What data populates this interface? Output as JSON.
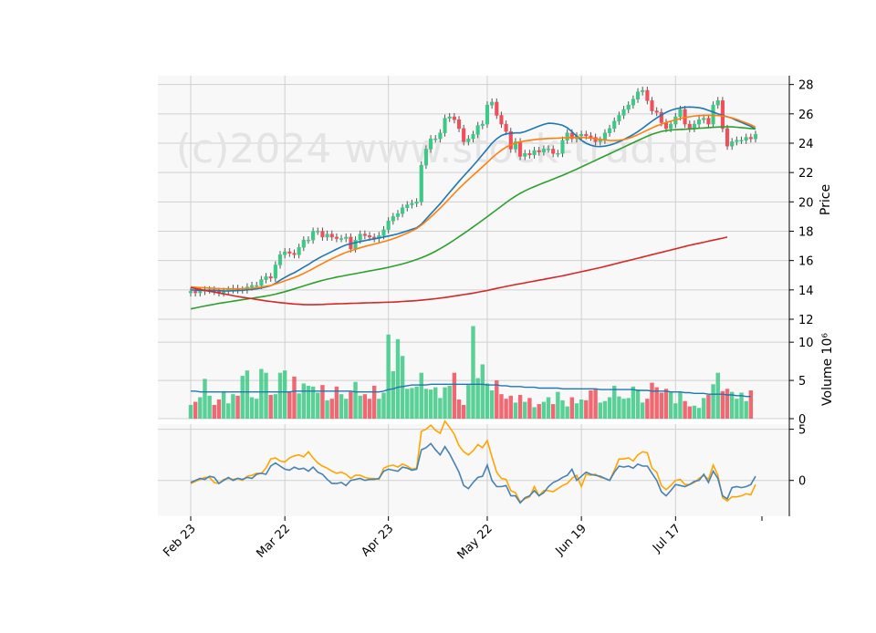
{
  "watermark": "(c)2024 www.stock-trad.de",
  "colors": {
    "panel_bg": "#f8f8f8",
    "grid": "#d0d0d0",
    "up": "#3dc985",
    "down": "#ef4f5a",
    "ma_blue": "#1f77b4",
    "ma_orange": "#ff7f0e",
    "ma_green": "#2ca02c",
    "ma_red": "#d62728",
    "vol_avg": "#1f77b4",
    "osc_a": "#ffa500",
    "osc_b": "#4682b4"
  },
  "chart_data": {
    "type": "candlestick",
    "x_ticks": [
      "Feb 23",
      "Mar 22",
      "Apr 23",
      "May 22",
      "Jun 19",
      "Jul 17"
    ],
    "price_panel": {
      "ylabel": "Price",
      "ylim": [
        12,
        28.6
      ],
      "yticks": [
        12,
        14,
        16,
        18,
        20,
        22,
        24,
        26,
        28
      ],
      "close": [
        13.9,
        13.8,
        13.9,
        14.0,
        14.0,
        13.9,
        13.8,
        13.9,
        14.0,
        14.1,
        14.0,
        14.0,
        14.2,
        14.3,
        14.3,
        14.7,
        14.9,
        14.8,
        15.7,
        16.4,
        16.6,
        16.5,
        16.4,
        16.9,
        17.4,
        17.4,
        18.0,
        18.0,
        17.6,
        17.8,
        17.6,
        17.5,
        17.5,
        17.6,
        16.8,
        17.4,
        17.8,
        17.7,
        17.6,
        17.5,
        17.7,
        18.1,
        18.7,
        19.0,
        19.2,
        19.6,
        19.8,
        19.9,
        20.0,
        22.5,
        23.6,
        24.3,
        24.3,
        24.7,
        25.7,
        25.8,
        25.6,
        25.0,
        24.1,
        24.3,
        24.6,
        25.2,
        25.3,
        26.6,
        26.8,
        25.9,
        25.3,
        24.8,
        23.6,
        24.1,
        23.1,
        23.3,
        23.2,
        23.5,
        23.4,
        23.6,
        23.6,
        23.3,
        23.3,
        24.2,
        24.7,
        24.3,
        24.5,
        24.6,
        24.5,
        24.4,
        24.1,
        24.2,
        24.7,
        25.0,
        25.5,
        25.9,
        26.3,
        26.6,
        27.0,
        27.5,
        27.6,
        26.9,
        26.2,
        26.1,
        25.4,
        25.0,
        25.3,
        25.8,
        26.3,
        25.3,
        25.0,
        25.3,
        25.6,
        25.7,
        25.3,
        26.6,
        26.9,
        25.0,
        23.8,
        24.1,
        24.2,
        24.2,
        24.4,
        24.3,
        24.6
      ],
      "moving_averages": [
        {
          "values": [
            14.0,
            13.98,
            13.97,
            13.98,
            13.98,
            13.98,
            13.95,
            13.93,
            13.93,
            13.94,
            13.95,
            13.97,
            14.0,
            14.03,
            14.07,
            14.13,
            14.2,
            14.28,
            14.45,
            14.66,
            14.85,
            15.02,
            15.17,
            15.35,
            15.55,
            15.73,
            15.94,
            16.13,
            16.3,
            16.46,
            16.62,
            16.78,
            16.93,
            17.07,
            17.15,
            17.22,
            17.3,
            17.36,
            17.43,
            17.48,
            17.54,
            17.6,
            17.67,
            17.74,
            17.82,
            17.92,
            18.02,
            18.13,
            18.23,
            18.48,
            18.83,
            19.19,
            19.53,
            19.88,
            20.27,
            20.65,
            21.03,
            21.4,
            21.76,
            22.11,
            22.47,
            22.84,
            23.22,
            23.61,
            23.99,
            24.3,
            24.52,
            24.64,
            24.67,
            24.7,
            24.7,
            24.78,
            24.91,
            25.04,
            25.16,
            25.28,
            25.36,
            25.35,
            25.3,
            25.22,
            25.05,
            24.78,
            24.47,
            24.2,
            23.99,
            23.86,
            23.78,
            23.77,
            23.8,
            23.87,
            23.97,
            24.1,
            24.25,
            24.41,
            24.59,
            24.79,
            25.02,
            25.26,
            25.5,
            25.72,
            25.92,
            26.1,
            26.24,
            26.34,
            26.4,
            26.45,
            26.47,
            26.45,
            26.42,
            26.35,
            26.24,
            26.12,
            26.0,
            25.9,
            25.8,
            25.7,
            25.55,
            25.42,
            25.28,
            25.15,
            24.96
          ]
        },
        {
          "values": [
            14.2,
            14.18,
            14.16,
            14.14,
            14.12,
            14.1,
            14.08,
            14.07,
            14.07,
            14.07,
            14.07,
            14.08,
            14.1,
            14.12,
            14.15,
            14.19,
            14.25,
            14.3,
            14.4,
            14.5,
            14.62,
            14.73,
            14.85,
            14.98,
            15.12,
            15.28,
            15.45,
            15.63,
            15.8,
            15.97,
            16.13,
            16.28,
            16.42,
            16.56,
            16.66,
            16.77,
            16.87,
            16.96,
            17.04,
            17.12,
            17.2,
            17.29,
            17.38,
            17.49,
            17.6,
            17.73,
            17.87,
            18.02,
            18.18,
            18.41,
            18.68,
            18.97,
            19.26,
            19.57,
            19.9,
            20.24,
            20.58,
            20.91,
            21.22,
            21.52,
            21.81,
            22.1,
            22.39,
            22.69,
            22.99,
            23.27,
            23.52,
            23.73,
            23.89,
            24.01,
            24.09,
            24.15,
            24.2,
            24.24,
            24.27,
            24.3,
            24.32,
            24.33,
            24.34,
            24.36,
            24.38,
            24.39,
            24.39,
            24.39,
            24.37,
            24.34,
            24.3,
            24.26,
            24.22,
            24.19,
            24.18,
            24.2,
            24.25,
            24.33,
            24.44,
            24.58,
            24.73,
            24.89,
            25.04,
            25.18,
            25.3,
            25.41,
            25.5,
            25.59,
            25.68,
            25.75,
            25.8,
            25.85,
            25.88,
            25.9,
            25.9,
            25.9,
            25.89,
            25.85,
            25.8,
            25.72,
            25.62,
            25.5,
            25.38,
            25.26,
            25.1
          ]
        },
        {
          "values": [
            12.7,
            12.77,
            12.84,
            12.9,
            12.96,
            13.02,
            13.08,
            13.13,
            13.18,
            13.23,
            13.28,
            13.33,
            13.38,
            13.43,
            13.48,
            13.53,
            13.58,
            13.64,
            13.71,
            13.79,
            13.88,
            13.97,
            14.07,
            14.17,
            14.27,
            14.37,
            14.47,
            14.56,
            14.65,
            14.73,
            14.8,
            14.87,
            14.93,
            14.99,
            15.05,
            15.11,
            15.17,
            15.23,
            15.29,
            15.35,
            15.41,
            15.47,
            15.54,
            15.61,
            15.69,
            15.77,
            15.86,
            15.96,
            16.07,
            16.19,
            16.32,
            16.47,
            16.63,
            16.81,
            17.0,
            17.2,
            17.41,
            17.62,
            17.84,
            18.06,
            18.29,
            18.52,
            18.75,
            18.99,
            19.23,
            19.47,
            19.71,
            19.95,
            20.18,
            20.39,
            20.58,
            20.75,
            20.9,
            21.04,
            21.17,
            21.3,
            21.42,
            21.55,
            21.68,
            21.81,
            21.95,
            22.09,
            22.23,
            22.38,
            22.53,
            22.68,
            22.83,
            22.98,
            23.13,
            23.28,
            23.43,
            23.58,
            23.73,
            23.88,
            24.03,
            24.18,
            24.33,
            24.47,
            24.6,
            24.71,
            24.8,
            24.86,
            24.9,
            24.92,
            24.94,
            24.95,
            24.97,
            24.99,
            25.02,
            25.04,
            25.06,
            25.08,
            25.1,
            25.12,
            25.12,
            25.11,
            25.09,
            25.06,
            25.03,
            25.0,
            24.96
          ]
        },
        {
          "values": [
            14.15,
            14.09,
            14.03,
            13.97,
            13.91,
            13.85,
            13.79,
            13.73,
            13.67,
            13.61,
            13.55,
            13.5,
            13.45,
            13.4,
            13.35,
            13.3,
            13.25,
            13.21,
            13.17,
            13.13,
            13.1,
            13.07,
            13.04,
            13.02,
            13.0,
            12.99,
            12.99,
            13.0,
            13.01,
            13.03,
            13.04,
            13.05,
            13.06,
            13.07,
            13.08,
            13.09,
            13.1,
            13.11,
            13.12,
            13.13,
            13.14,
            13.15,
            13.16,
            13.17,
            13.19,
            13.21,
            13.23,
            13.25,
            13.27,
            13.3,
            13.33,
            13.36,
            13.4,
            13.44,
            13.48,
            13.53,
            13.58,
            13.63,
            13.68,
            13.73,
            13.78,
            13.84,
            13.9,
            13.96,
            14.03,
            14.1,
            14.17,
            14.24,
            14.3,
            14.36,
            14.42,
            14.48,
            14.54,
            14.6,
            14.66,
            14.72,
            14.78,
            14.84,
            14.9,
            14.96,
            15.03,
            15.1,
            15.17,
            15.24,
            15.31,
            15.38,
            15.45,
            15.52,
            15.6,
            15.68,
            15.76,
            15.84,
            15.92,
            16.0,
            16.08,
            16.16,
            16.24,
            16.32,
            16.4,
            16.48,
            16.56,
            16.64,
            16.72,
            16.8,
            16.88,
            16.96,
            17.04,
            17.11,
            17.18,
            17.25,
            17.32,
            17.39,
            17.46,
            17.53,
            17.6
          ]
        }
      ]
    },
    "volume_panel": {
      "ylabel": "Volume  10⁶",
      "ylim": [
        0,
        13
      ],
      "yticks": [
        0,
        5,
        10
      ],
      "values": [
        1.8,
        2.2,
        2.8,
        5.2,
        3.0,
        1.8,
        2.5,
        3.5,
        2.0,
        3.2,
        3.0,
        5.6,
        6.3,
        2.8,
        2.6,
        6.5,
        6.0,
        3.1,
        3.2,
        6.0,
        6.3,
        3.5,
        5.5,
        3.3,
        4.6,
        4.3,
        4.2,
        3.4,
        4.4,
        2.4,
        2.6,
        4.2,
        3.2,
        2.6,
        3.5,
        4.8,
        3.0,
        3.2,
        2.6,
        4.3,
        2.6,
        3.4,
        11.0,
        6.2,
        10.4,
        8.2,
        3.9,
        4.0,
        4.2,
        6.0,
        3.9,
        3.8,
        4.1,
        2.7,
        4.1,
        4.3,
        6.0,
        2.5,
        1.8,
        4.4,
        12.1,
        5.3,
        7.1,
        4.6,
        3.7,
        5.0,
        3.2,
        2.6,
        3.0,
        2.1,
        3.1,
        2.2,
        2.7,
        1.5,
        1.9,
        2.2,
        2.8,
        1.9,
        3.5,
        2.4,
        1.6,
        2.8,
        2.0,
        2.5,
        2.4,
        3.7,
        3.9,
        2.1,
        2.3,
        2.8,
        4.3,
        2.9,
        2.6,
        2.7,
        4.2,
        3.8,
        2.1,
        2.6,
        4.7,
        4.1,
        3.4,
        3.9,
        3.5,
        2.0,
        3.5,
        2.3,
        1.6,
        1.7,
        1.4,
        2.7,
        3.1,
        4.5,
        6.0,
        3.6,
        3.9,
        3.5,
        2.6,
        3.4,
        2.3,
        3.7
      ],
      "avg": [
        3.6,
        3.6,
        3.5,
        3.5,
        3.5,
        3.5,
        3.5,
        3.5,
        3.5,
        3.5,
        3.5,
        3.5,
        3.5,
        3.5,
        3.5,
        3.5,
        3.5,
        3.5,
        3.5,
        3.5,
        3.5,
        3.5,
        3.6,
        3.6,
        3.6,
        3.6,
        3.6,
        3.6,
        3.6,
        3.6,
        3.6,
        3.6,
        3.6,
        3.6,
        3.6,
        3.5,
        3.5,
        3.5,
        3.5,
        3.5,
        3.5,
        3.6,
        3.8,
        3.9,
        4.1,
        4.2,
        4.3,
        4.4,
        4.4,
        4.4,
        4.4,
        4.5,
        4.5,
        4.5,
        4.5,
        4.5,
        4.5,
        4.5,
        4.5,
        4.5,
        4.5,
        4.5,
        4.5,
        4.4,
        4.4,
        4.4,
        4.3,
        4.3,
        4.2,
        4.2,
        4.2,
        4.1,
        4.1,
        4.1,
        4.0,
        4.0,
        4.0,
        4.0,
        4.0,
        3.9,
        3.9,
        3.9,
        3.9,
        3.9,
        3.9,
        3.9,
        3.9,
        3.8,
        3.8,
        3.8,
        3.8,
        3.8,
        3.8,
        3.8,
        3.8,
        3.7,
        3.7,
        3.7,
        3.6,
        3.6,
        3.6,
        3.6,
        3.5,
        3.5,
        3.5,
        3.4,
        3.4,
        3.3,
        3.3,
        3.3,
        3.2,
        3.2,
        3.2,
        3.2,
        3.1,
        3.1,
        3.0,
        3.0,
        2.9,
        2.9
      ]
    },
    "oscillator_panel": {
      "ylim": [
        -3.5,
        5.5
      ],
      "yticks": [
        0,
        5
      ],
      "series": [
        {
          "values": [
            -0.3,
            -0.1,
            0.1,
            0.3,
            0.3,
            -0.2,
            -0.3,
            0.1,
            0.2,
            0.1,
            0.2,
            0.0,
            0.4,
            0.5,
            0.7,
            0.7,
            1.2,
            2.1,
            2.2,
            1.9,
            1.8,
            2.2,
            2.4,
            2.5,
            2.3,
            2.8,
            2.2,
            1.7,
            1.4,
            1.2,
            0.9,
            0.7,
            0.8,
            0.6,
            0.2,
            0.5,
            0.5,
            0.3,
            0.2,
            0.2,
            0.1,
            1.2,
            1.4,
            1.5,
            1.3,
            1.6,
            1.4,
            1.1,
            1.2,
            4.8,
            5.0,
            5.4,
            4.9,
            4.6,
            5.8,
            5.2,
            4.5,
            3.4,
            2.8,
            2.5,
            2.9,
            3.5,
            3.2,
            3.9,
            2.3,
            0.8,
            0.2,
            0.1,
            -1.0,
            -1.2,
            -2.1,
            -1.8,
            -1.6,
            -0.6,
            -1.5,
            -1.0,
            -1.0,
            -1.1,
            -0.8,
            -0.5,
            -0.3,
            0.2,
            0.5,
            -0.6,
            0.6,
            0.5,
            0.6,
            0.3,
            0.2,
            0.0,
            1.0,
            2.1,
            2.1,
            2.2,
            1.9,
            2.5,
            2.8,
            2.7,
            1.2,
            0.8,
            -0.5,
            -0.9,
            -0.5,
            0.0,
            0.1,
            -0.4,
            -0.4,
            -0.2,
            0.2,
            0.5,
            0.1,
            1.5,
            0.5,
            -1.7,
            -2.0,
            -1.6,
            -1.6,
            -1.5,
            -1.3,
            -1.4,
            -0.4
          ]
        },
        {
          "values": [
            -0.2,
            0.0,
            0.2,
            0.1,
            0.4,
            0.3,
            -0.3,
            0.0,
            0.3,
            0.0,
            0.2,
            0.1,
            0.3,
            0.2,
            0.6,
            0.7,
            0.6,
            1.4,
            1.7,
            1.4,
            1.1,
            1.0,
            1.3,
            1.1,
            1.2,
            0.9,
            1.3,
            0.8,
            0.6,
            0.1,
            -0.3,
            -0.3,
            -0.2,
            -0.5,
            0.0,
            0.1,
            0.2,
            0.0,
            0.1,
            0.1,
            0.2,
            0.9,
            1.1,
            1.0,
            0.9,
            1.3,
            1.2,
            1.0,
            1.1,
            3.0,
            3.2,
            3.6,
            3.0,
            2.5,
            3.3,
            2.6,
            1.7,
            0.8,
            -0.5,
            -0.8,
            -0.2,
            0.3,
            0.4,
            1.5,
            0.0,
            -0.6,
            -0.6,
            -0.5,
            -1.5,
            -1.5,
            -2.2,
            -1.7,
            -1.5,
            -1.0,
            -1.5,
            -1.2,
            -0.6,
            -0.2,
            0.0,
            0.3,
            0.5,
            1.1,
            0.0,
            0.4,
            0.8,
            0.6,
            0.5,
            0.4,
            0.2,
            0.0,
            0.8,
            1.4,
            1.3,
            1.4,
            1.2,
            1.6,
            1.4,
            1.4,
            0.7,
            0.0,
            -1.1,
            -1.5,
            -1.0,
            -0.4,
            -0.5,
            -0.6,
            -0.4,
            -0.1,
            0.0,
            0.6,
            -0.2,
            0.9,
            0.2,
            -1.5,
            -1.8,
            -0.7,
            -0.6,
            -0.7,
            -0.6,
            -0.4,
            0.4
          ]
        }
      ]
    }
  }
}
